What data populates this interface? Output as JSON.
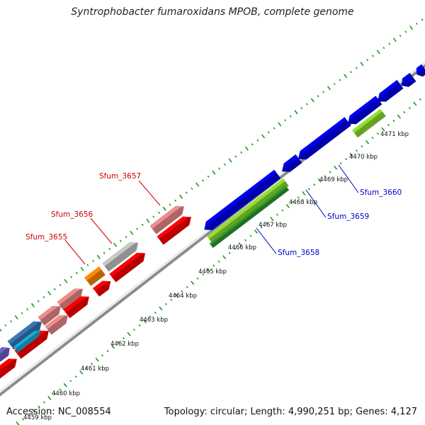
{
  "title": "Syntrophobacter fumaroxidans MPOB, complete genome",
  "footer": {
    "accession": "Accession: NC_008554",
    "summary": "Topology: circular; Length: 4,990,251 bp; Genes: 4,127"
  },
  "position_labels": [
    "4459 kbp",
    "4460 kbp",
    "4461 kbp",
    "4462 kbp",
    "4463 kbp",
    "4464 kbp",
    "4465 kbp",
    "4466 kbp",
    "4467 kbp",
    "4468 kbp",
    "4469 kbp",
    "4470 kbp",
    "4471 kbp"
  ],
  "gene_labels": [
    {
      "name": "Sfum_3655",
      "strand": "forward",
      "color": "#cc0000"
    },
    {
      "name": "Sfum_3656",
      "strand": "forward",
      "color": "#cc0000"
    },
    {
      "name": "Sfum_3657",
      "strand": "forward",
      "color": "#cc0000"
    },
    {
      "name": "Sfum_3658",
      "strand": "reverse",
      "color": "#0000cc"
    },
    {
      "name": "Sfum_3659",
      "strand": "reverse",
      "color": "#0000cc"
    },
    {
      "name": "Sfum_3660",
      "strand": "reverse",
      "color": "#0000cc"
    }
  ],
  "colors": {
    "backbone": "#8c8c8c",
    "tick_marks": "#1e9a1e",
    "forward_gene": "#ff0000",
    "forward_gene_light": "#f08c8c",
    "reverse_gene": "#0000ee",
    "highlight_gene_green": "#8fe030",
    "highlight_gene_dark_green": "#2e9a2e",
    "gray_gene": "#c8c8c8",
    "orange_gene": "#ff8c00",
    "cyan_gene": "#18b0e0",
    "steelblue_gene": "#3a78b4",
    "purple_gene": "#7060d0"
  }
}
